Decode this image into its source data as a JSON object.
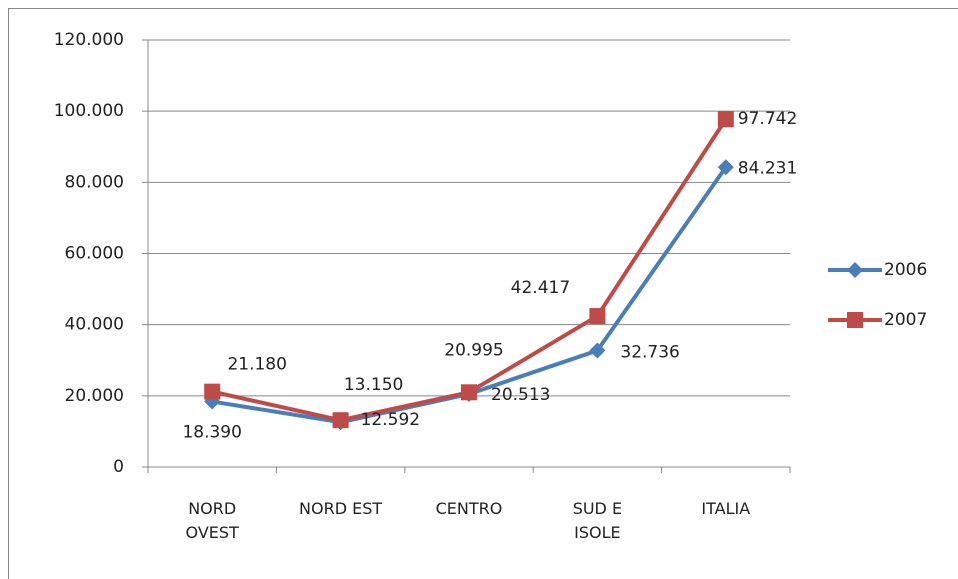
{
  "chart_data": {
    "type": "line",
    "categories": [
      "NORD OVEST",
      "NORD EST",
      "CENTRO",
      "SUD E ISOLE",
      "ITALIA"
    ],
    "series": [
      {
        "name": "2006",
        "color": "#4a7ebb",
        "values": [
          18390,
          12592,
          20513,
          32736,
          84231
        ],
        "value_labels": [
          "18.390",
          "12.592",
          "20.513",
          "32.736",
          "84.231"
        ]
      },
      {
        "name": "2007",
        "color": "#be4b48",
        "values": [
          21180,
          13150,
          20995,
          42417,
          97742
        ],
        "value_labels": [
          "21.180",
          "13.150",
          "20.995",
          "42.417",
          "97.742"
        ]
      }
    ],
    "ylim": [
      0,
      120000
    ],
    "yticks": [
      0,
      {
        "value": 20000,
        "label": "20.000"
      },
      {
        "value": 40000,
        "label": "40.000"
      },
      {
        "value": 60000,
        "label": "60.000"
      },
      {
        "value": 80000,
        "label": "80.000"
      },
      {
        "value": 100000,
        "label": "100.000"
      },
      {
        "value": 120000,
        "label": "120.000"
      }
    ],
    "grid": true,
    "legend": "right"
  }
}
